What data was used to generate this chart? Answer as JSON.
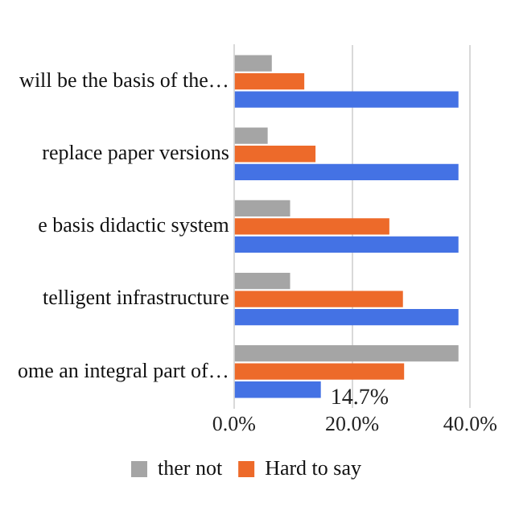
{
  "chart_data": {
    "type": "bar",
    "orientation": "horizontal",
    "categories": [
      "will be the basis of the…",
      "replace paper versions",
      "e basis didactic system",
      "telligent infrastructure",
      "ome an integral part of…"
    ],
    "series": [
      {
        "name": "ther not",
        "color": "#a5a5a5",
        "values": [
          6.4,
          5.7,
          9.5,
          9.5,
          38
        ]
      },
      {
        "name": "Hard to say",
        "color": "#ed6a2a",
        "values": [
          11.9,
          13.8,
          26.3,
          28.6,
          28.8
        ]
      },
      {
        "color": "#4472e4",
        "values": [
          38,
          38,
          38,
          38,
          14.7
        ],
        "value_labels": [
          null,
          null,
          null,
          null,
          "14.7%"
        ]
      }
    ],
    "xlim": [
      0,
      40
    ],
    "xticks": [
      {
        "value": 0,
        "label": "0.0%"
      },
      {
        "value": 20,
        "label": "20.0%"
      },
      {
        "value": 40,
        "label": "40.0%"
      }
    ],
    "grid": "x",
    "legend": "bottom"
  }
}
